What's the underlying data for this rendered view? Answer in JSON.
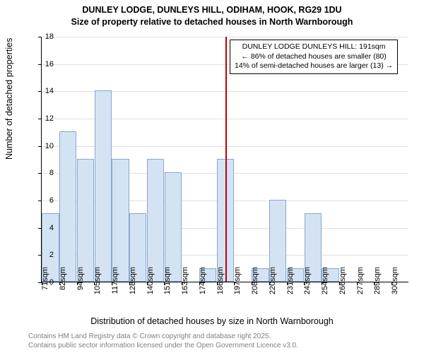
{
  "title_line1": "DUNLEY LODGE, DUNLEYS HILL, ODIHAM, HOOK, RG29 1DU",
  "title_line2": "Size of property relative to detached houses in North Warnborough",
  "ylabel": "Number of detached properties",
  "xlabel": "Distribution of detached houses by size in North Warnborough",
  "copyright_line1": "Contains HM Land Registry data © Crown copyright and database right 2025.",
  "copyright_line2": "Contains public sector information licensed under the Open Government Licence v3.0.",
  "chart": {
    "type": "histogram",
    "xlim_count": 21,
    "ylim": [
      0,
      18
    ],
    "ytick_step": 2,
    "background_color": "#ffffff",
    "grid_color": "#e0e0e0",
    "bar_fill": "#d4e3f4",
    "bar_border": "#87a8cc",
    "marker_color": "#c00000",
    "axis_fontsize": 11,
    "label_fontsize": 12.5,
    "title_fontsize": 12.5,
    "x_categories": [
      "71sqm",
      "82sqm",
      "94sqm",
      "105sqm",
      "117sqm",
      "128sqm",
      "140sqm",
      "151sqm",
      "163sqm",
      "174sqm",
      "186sqm",
      "197sqm",
      "208sqm",
      "220sqm",
      "231sqm",
      "243sqm",
      "254sqm",
      "266sqm",
      "277sqm",
      "289sqm",
      "300sqm"
    ],
    "values": [
      5,
      11,
      9,
      14,
      9,
      5,
      9,
      8,
      0,
      1,
      9,
      0,
      1,
      6,
      1,
      5,
      1,
      0,
      0,
      0,
      0
    ],
    "marker_position": 10.5,
    "callout": {
      "line1": "DUNLEY LODGE DUNLEYS HILL: 191sqm",
      "line2": "← 86% of detached houses are smaller (80)",
      "line3": "14% of semi-detached houses are larger (13) →"
    }
  }
}
